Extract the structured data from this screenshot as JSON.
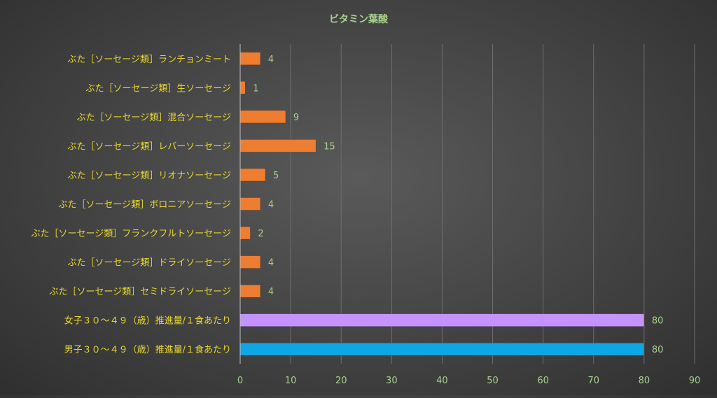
{
  "chart_data": {
    "type": "bar",
    "orientation": "horizontal",
    "title": "ビタミン葉酸",
    "xlabel": "",
    "ylabel": "",
    "xlim": [
      0,
      90
    ],
    "x_ticks": [
      0,
      10,
      20,
      30,
      40,
      50,
      60,
      70,
      80,
      90
    ],
    "grid": "vertical",
    "legend": "none",
    "categories": [
      "ぶた［ソーセージ類］ランチョンミート",
      "ぶた［ソーセージ類］生ソーセージ",
      "ぶた［ソーセージ類］混合ソーセージ",
      "ぶた［ソーセージ類］レバーソーセージ",
      "ぶた［ソーセージ類］リオナソーセージ",
      "ぶた［ソーセージ類］ボロニアソーセージ",
      "ぶた［ソーセージ類］フランクフルトソーセージ",
      "ぶた［ソーセージ類］ドライソーセージ",
      "ぶた［ソーセージ類］セミドライソーセージ",
      "女子３０～４９（歳）推進量/１食あたり",
      "男子３０～４９（歳）推進量/１食あたり"
    ],
    "values": [
      4,
      1,
      9,
      15,
      5,
      4,
      2,
      4,
      4,
      80,
      80
    ],
    "bar_colors": [
      "#ed7d31",
      "#ed7d31",
      "#ed7d31",
      "#ed7d31",
      "#ed7d31",
      "#ed7d31",
      "#ed7d31",
      "#ed7d31",
      "#ed7d31",
      "#c593ff",
      "#0fa6e6"
    ]
  },
  "colors": {
    "title": "#a9d18e",
    "category_label": "#e8d630",
    "value_label": "#a9d18e",
    "tick_label": "#a9d18e",
    "grid": "#6e6e6e",
    "axis": "#bfbfbf"
  }
}
